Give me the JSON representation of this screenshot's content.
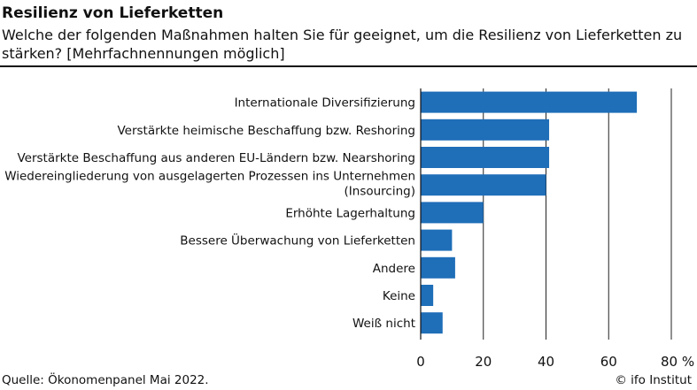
{
  "chart_data": {
    "type": "bar",
    "orientation": "horizontal",
    "title": "Resilienz von Lieferketten",
    "subtitle": "Welche der folgenden Maßnahmen halten Sie für geeignet, um die Resilienz von Lieferketten zu stärken? [Mehrfachnennungen möglich]",
    "categories": [
      "Internationale Diversifizierung",
      "Verstärkte heimische Beschaffung bzw. Reshoring",
      "Verstärkte Beschaffung aus anderen EU-Ländern bzw. Nearshoring",
      "Wiedereingliederung von ausgelagerten Prozessen ins Unternehmen (Insourcing)",
      "Erhöhte Lagerhaltung",
      "Bessere Überwachung von Lieferketten",
      "Andere",
      "Keine",
      "Weiß nicht"
    ],
    "category_lines": [
      [
        "Internationale Diversifizierung"
      ],
      [
        "Verstärkte heimische Beschaffung bzw. Reshoring"
      ],
      [
        "Verstärkte Beschaffung aus anderen EU-Ländern bzw. Nearshoring"
      ],
      [
        "Wiedereingliederung von ausgelagerten Prozessen ins Unternehmen",
        "(Insourcing)"
      ],
      [
        "Erhöhte Lagerhaltung"
      ],
      [
        "Bessere Überwachung von Lieferketten"
      ],
      [
        "Andere"
      ],
      [
        "Keine"
      ],
      [
        "Weiß nicht"
      ]
    ],
    "values": [
      69,
      41,
      41,
      40,
      20,
      10,
      11,
      4,
      7
    ],
    "xlim": [
      0,
      80
    ],
    "xticks": [
      0,
      20,
      40,
      60,
      80
    ],
    "xtick_labels": [
      "0",
      "20",
      "40",
      "60",
      "80 %"
    ],
    "grid": "vertical",
    "bar_color": "#1f6eb8"
  },
  "footer": {
    "source": "Quelle: Ökonomenpanel Mai 2022.",
    "credit": "© ifo Institut"
  }
}
